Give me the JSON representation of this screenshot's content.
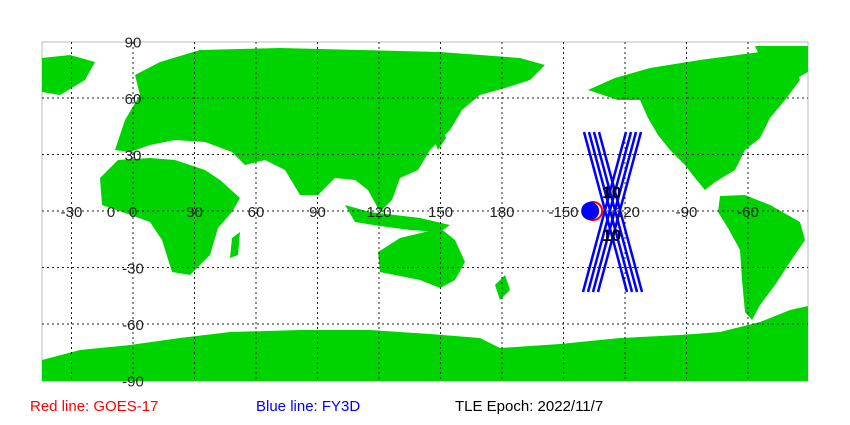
{
  "map": {
    "land_color": "#00d400",
    "ocean_color": "#ffffff",
    "grid": true,
    "lon_labels": [
      "-30",
      "0",
      "30",
      "60",
      "90",
      "120",
      "150",
      "180",
      "-150",
      "-120",
      "-90",
      "-60"
    ],
    "lon_values": [
      -30,
      0,
      30,
      60,
      90,
      120,
      150,
      180,
      210,
      240,
      270,
      300
    ],
    "lat_labels": [
      "90",
      "60",
      "30",
      "0",
      "-30",
      "-60",
      "-90"
    ],
    "lat_values": [
      90,
      60,
      30,
      0,
      -30,
      -60,
      -90
    ],
    "satellites": [
      {
        "name": "GOES-17",
        "color": "#ff0000",
        "label": "10",
        "lon": -137,
        "lat": 0
      },
      {
        "name": "FY3D",
        "color": "#0000ff",
        "label": "10",
        "lon": -137,
        "lat": 0
      }
    ]
  },
  "legend": {
    "red": {
      "text": "Red line: GOES-17",
      "color": "#ff0000"
    },
    "blue": {
      "text": "Blue line: FY3D",
      "color": "#0000ff"
    },
    "epoch": {
      "text": "TLE Epoch: 2022/11/7",
      "color": "#000000"
    }
  }
}
